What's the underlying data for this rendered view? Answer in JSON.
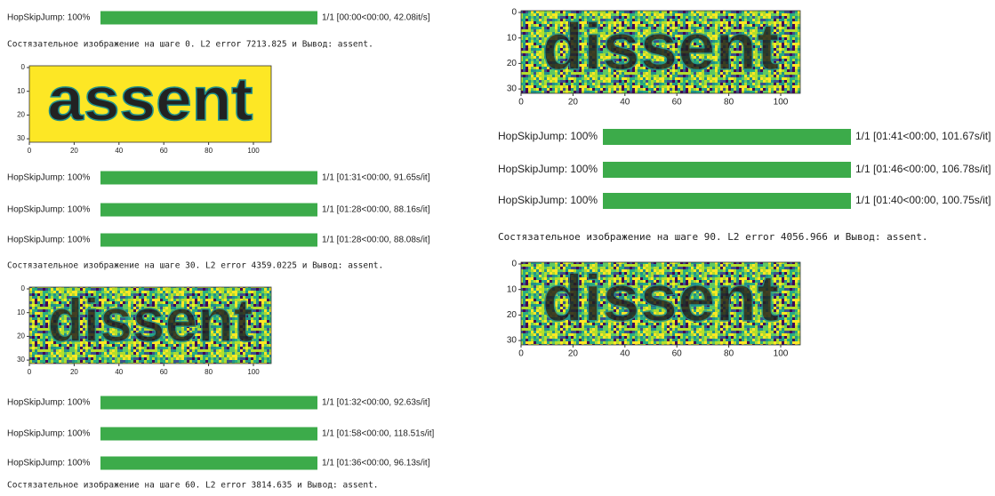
{
  "left": [
    {
      "kind": "progress",
      "label": "HopSkipJump: 100%",
      "stats": "1/1 [00:00<00:00, 42.08it/s]"
    },
    {
      "kind": "message",
      "text": "Состязательное изображение на шаге 0. L2 error 7213.825 и Вывод: assent."
    },
    {
      "kind": "plot",
      "image_text": "assent",
      "noisy": false,
      "yticks": [
        "0",
        "10",
        "20",
        "30"
      ],
      "xticks": [
        "0",
        "20",
        "40",
        "60",
        "80",
        "100"
      ]
    },
    {
      "kind": "progress",
      "label": "HopSkipJump: 100%",
      "stats": "1/1 [01:31<00:00, 91.65s/it]"
    },
    {
      "kind": "progress",
      "label": "HopSkipJump: 100%",
      "stats": "1/1 [01:28<00:00, 88.16s/it]"
    },
    {
      "kind": "progress",
      "label": "HopSkipJump: 100%",
      "stats": "1/1 [01:28<00:00, 88.08s/it]"
    },
    {
      "kind": "message",
      "text": "Состязательное изображение на шаге 30. L2 error 4359.0225 и Вывод: assent."
    },
    {
      "kind": "plot",
      "image_text": "dissent",
      "noisy": true,
      "yticks": [
        "0",
        "10",
        "20",
        "30"
      ],
      "xticks": [
        "0",
        "20",
        "40",
        "60",
        "80",
        "100"
      ]
    },
    {
      "kind": "progress",
      "label": "HopSkipJump: 100%",
      "stats": "1/1 [01:32<00:00, 92.63s/it]"
    },
    {
      "kind": "progress",
      "label": "HopSkipJump: 100%",
      "stats": "1/1 [01:58<00:00, 118.51s/it]"
    },
    {
      "kind": "progress",
      "label": "HopSkipJump: 100%",
      "stats": "1/1 [01:36<00:00, 96.13s/it]"
    },
    {
      "kind": "message",
      "text": "Состязательное изображение на шаге 60. L2 error 3814.635 и Вывод: assent."
    }
  ],
  "right": [
    {
      "kind": "plot",
      "image_text": "dissent",
      "noisy": true,
      "yticks": [
        "0",
        "10",
        "20",
        "30"
      ],
      "xticks": [
        "0",
        "20",
        "40",
        "60",
        "80",
        "100"
      ]
    },
    {
      "kind": "progress",
      "label": "HopSkipJump: 100%",
      "stats": "1/1 [01:41<00:00, 101.67s/it]"
    },
    {
      "kind": "progress",
      "label": "HopSkipJump: 100%",
      "stats": "1/1 [01:46<00:00, 106.78s/it]"
    },
    {
      "kind": "progress",
      "label": "HopSkipJump: 100%",
      "stats": "1/1 [01:40<00:00, 100.75s/it]"
    },
    {
      "kind": "message",
      "text": "Состязательное изображение на шаге 90. L2 error 4056.966 и Вывод: assent."
    },
    {
      "kind": "plot",
      "image_text": "dissent",
      "noisy": true,
      "yticks": [
        "0",
        "10",
        "20",
        "30"
      ],
      "xticks": [
        "0",
        "20",
        "40",
        "60",
        "80",
        "100"
      ]
    }
  ]
}
